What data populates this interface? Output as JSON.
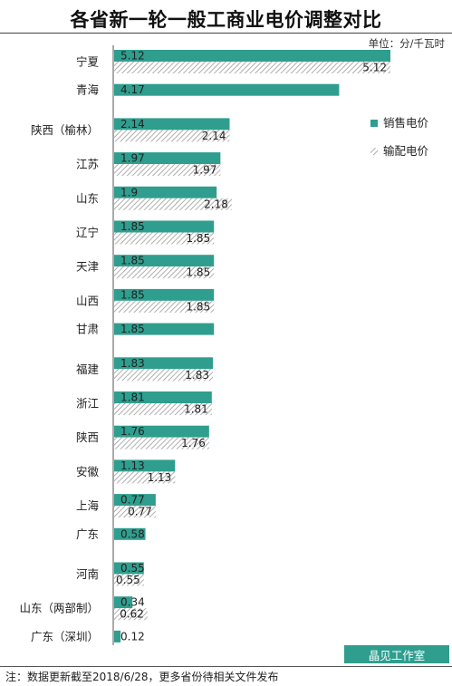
{
  "title": "各省新一轮一般工商业电价调整对比",
  "unit": "单位：分/千瓦时",
  "footer": {
    "badge": "晶见工作室",
    "note": "注：数据更新截至2018/6/28，更多省份待相关文件发布"
  },
  "colors": {
    "sales": "#2f9e8e",
    "transmission_pattern": "#9a9a9a"
  },
  "chart_data": {
    "type": "bar",
    "orientation": "horizontal",
    "categories": [
      "宁夏",
      "青海",
      "陕西（榆林）",
      "江苏",
      "山东",
      "辽宁",
      "天津",
      "山西",
      "甘肃",
      "福建",
      "浙江",
      "陕西",
      "安徽",
      "上海",
      "广东",
      "河南",
      "山东（两部制）",
      "广东（深圳）"
    ],
    "series": [
      {
        "name": "销售电价",
        "style": "solid",
        "values": [
          5.12,
          4.17,
          2.14,
          1.97,
          1.9,
          1.85,
          1.85,
          1.85,
          1.85,
          1.83,
          1.81,
          1.76,
          1.13,
          0.77,
          0.58,
          0.55,
          0.34,
          0.12
        ]
      },
      {
        "name": "输配电价",
        "style": "hatched",
        "values": [
          5.12,
          null,
          2.14,
          1.97,
          2.18,
          1.85,
          1.85,
          1.85,
          null,
          1.83,
          1.81,
          1.76,
          1.13,
          0.77,
          null,
          0.55,
          0.62,
          null
        ]
      }
    ],
    "labels": {
      "sales": [
        "5.12",
        "4.17",
        "2.14",
        "1.97",
        "1.9",
        "1.85",
        "1.85",
        "1.85",
        "1.85",
        "1.83",
        "1.81",
        "1.76",
        "1.13",
        "0.77",
        "0.58",
        "0.55",
        "0.34",
        "0.12"
      ],
      "transmission": [
        "5.12",
        "",
        "2.14",
        "1.97",
        "2.18",
        "1.85",
        "1.85",
        "1.85",
        "",
        "1.83",
        "1.81",
        "1.76",
        "1.13",
        "0.77",
        "",
        "0.55",
        "0.62",
        ""
      ]
    },
    "legend": {
      "position": "right"
    },
    "grid": false
  }
}
